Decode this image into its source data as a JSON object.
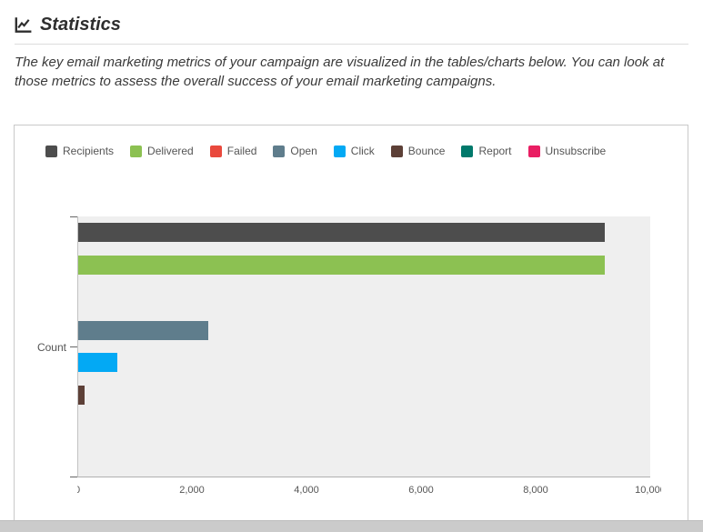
{
  "header": {
    "title": "Statistics",
    "description": "The key email marketing metrics of your campaign are visualized in the tables/charts below. You can look at those metrics to assess the overall success of your email marketing campaigns."
  },
  "chart_data": {
    "type": "bar",
    "orientation": "horizontal",
    "title": "",
    "xlabel": "",
    "ylabel": "Count",
    "xlim": [
      0,
      10000
    ],
    "xticks": [
      0,
      2000,
      4000,
      6000,
      8000,
      10000
    ],
    "xtick_labels": [
      "0",
      "2,000",
      "4,000",
      "6,000",
      "8,000",
      "10,000"
    ],
    "grid": false,
    "legend_position": "top",
    "plot_background": "#efefef",
    "categories": [
      "Recipients",
      "Delivered",
      "Failed",
      "Open",
      "Click",
      "Bounce",
      "Report",
      "Unsubscribe"
    ],
    "values": [
      9200,
      9200,
      0,
      2270,
      680,
      110,
      0,
      0
    ],
    "colors": [
      "#4d4d4d",
      "#8cc152",
      "#e9493d",
      "#5f7d8c",
      "#03a9f4",
      "#5d4037",
      "#00796b",
      "#e91e63"
    ]
  }
}
